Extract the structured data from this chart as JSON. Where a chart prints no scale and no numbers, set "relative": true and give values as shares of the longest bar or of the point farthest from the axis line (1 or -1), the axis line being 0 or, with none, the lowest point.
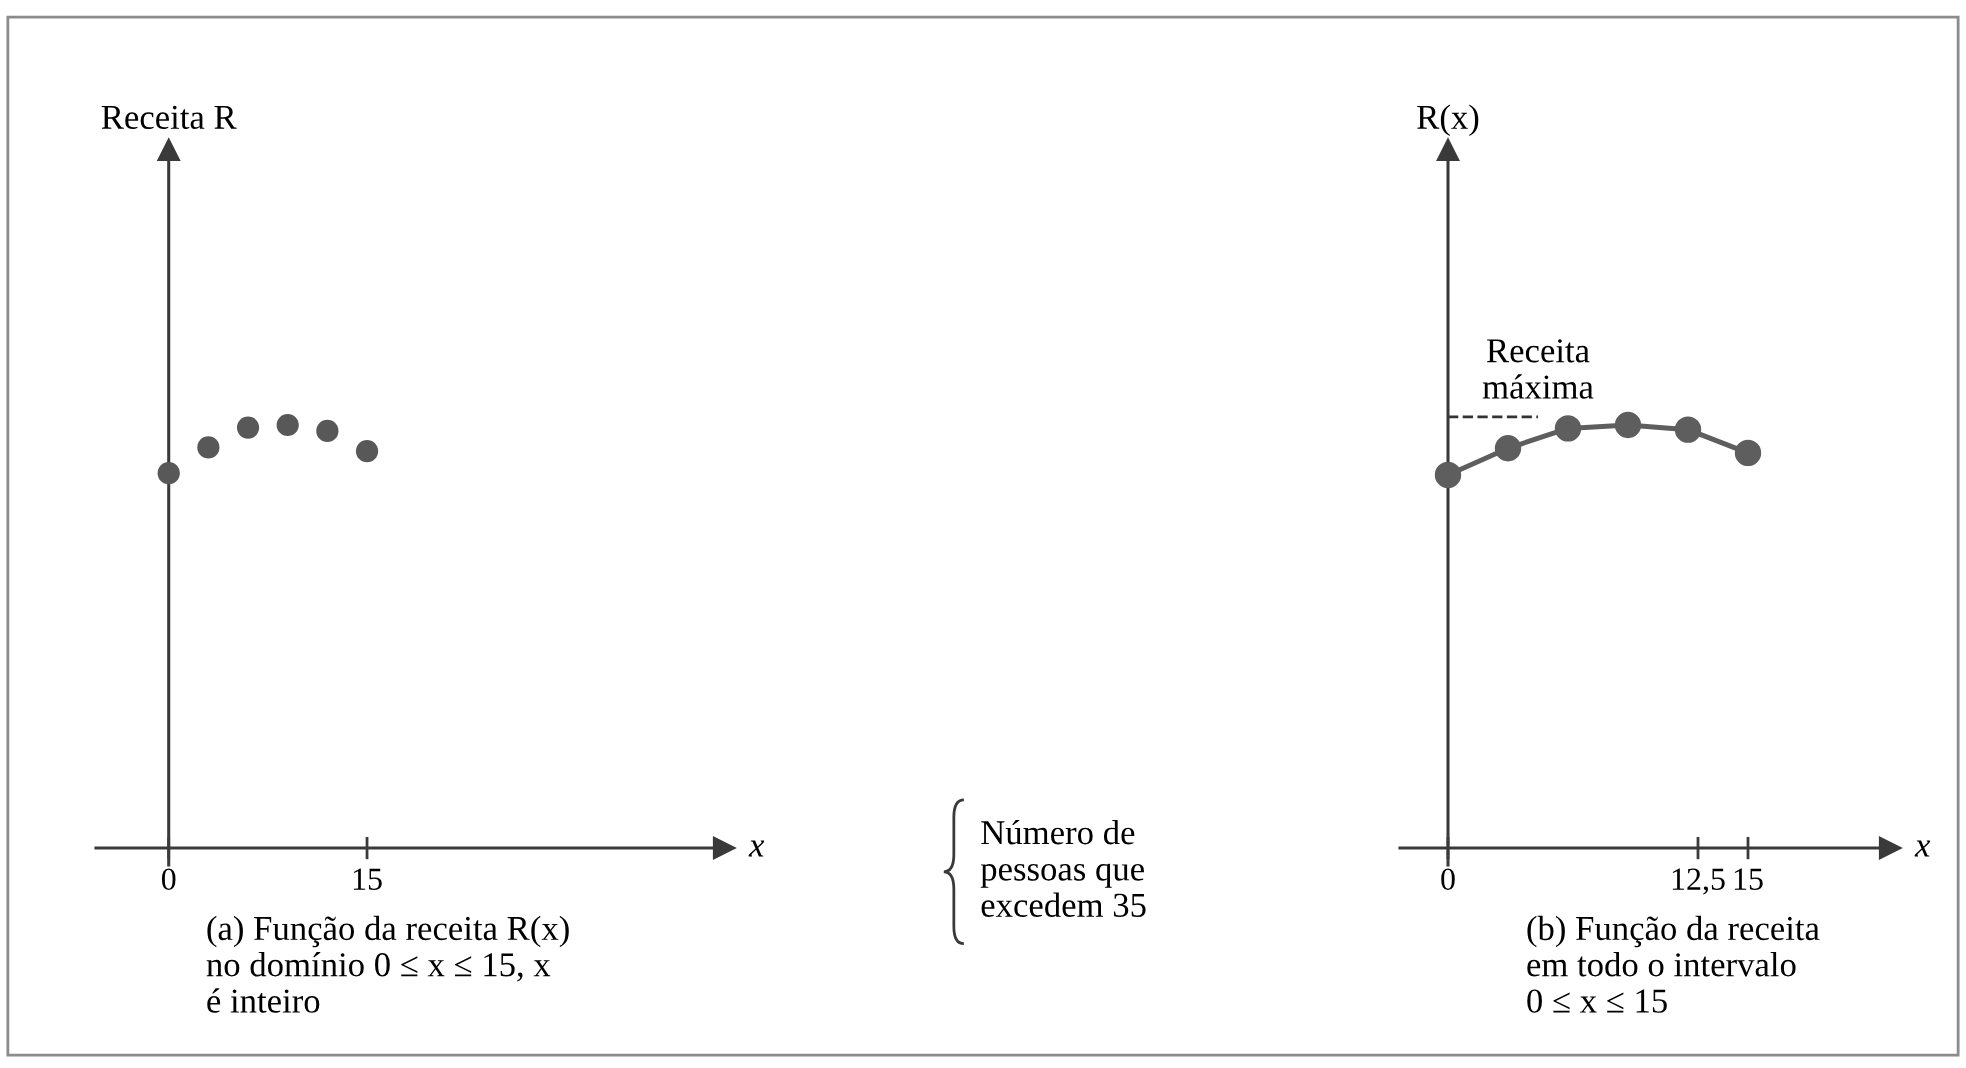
{
  "chart_data": [
    {
      "type": "scatter",
      "ylabel": "Receita R",
      "xlabel": "x",
      "x": [
        0,
        3,
        6,
        9,
        12,
        15
      ],
      "values": [
        0.886,
        0.947,
        0.994,
        1,
        0.986,
        0.938
      ],
      "color": "#585858",
      "marker": "circle",
      "relative": true,
      "xlim": [
        -5.5,
        42
      ],
      "xticks": [
        0,
        15
      ],
      "annotations": [
        "Número de\npessoas que\nexcedem 35",
        "(a) Função da receita R(x)\nno domínio 0 ≤ x ≤ 15, x\né inteiro"
      ]
    },
    {
      "type": "line",
      "ylabel": "R(x)",
      "xlabel": "x",
      "x": [
        0,
        3,
        6,
        9,
        12,
        15
      ],
      "values": [
        0.882,
        0.945,
        0.992,
        1,
        0.989,
        0.934
      ],
      "color": "#5e5e5e",
      "marker": "circle",
      "line_style": "solid",
      "relative": true,
      "xlim": [
        -2.4,
        22.1
      ],
      "xticks": [
        0,
        {
          "value": 12.5,
          "label": "12,5"
        },
        15
      ],
      "ref_lines": [
        {
          "axis": "y",
          "value": 1.019,
          "label": "Receita\nmáxima",
          "line_style": "dashed",
          "color": "#333333"
        }
      ],
      "annotations": [
        "(b) Função da receita\nem todo o intervalo\n0 ≤ x ≤ 15"
      ]
    }
  ]
}
